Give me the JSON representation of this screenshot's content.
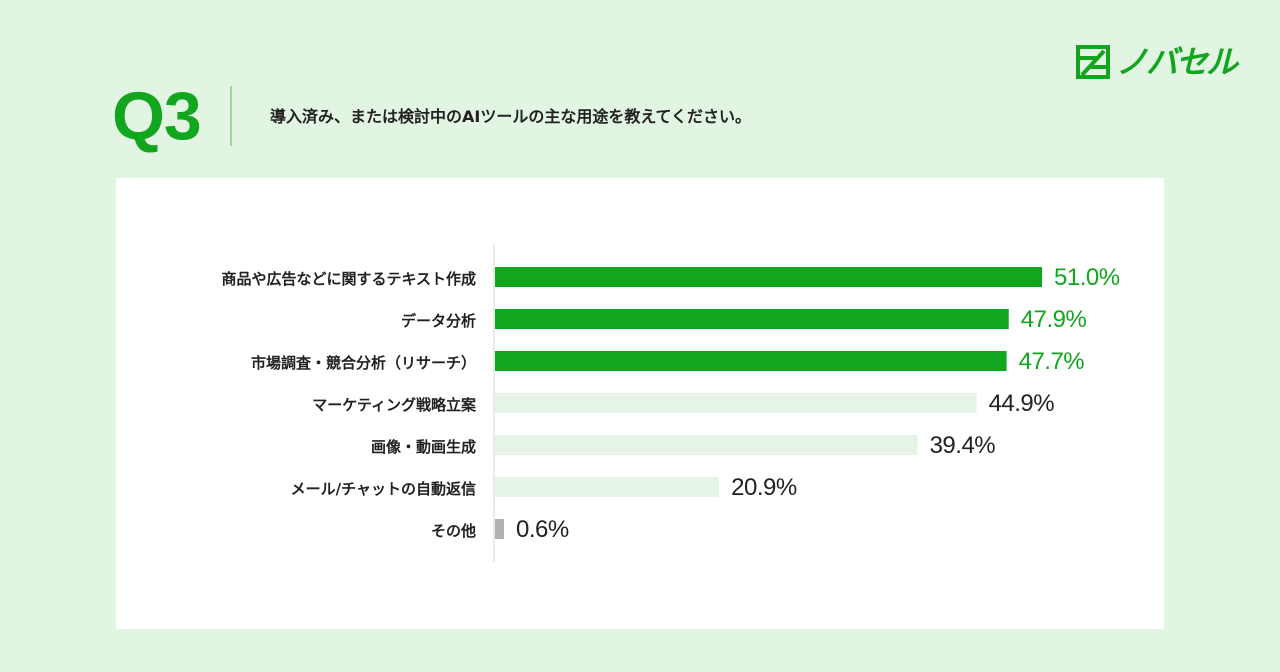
{
  "header": {
    "question_number": "Q3",
    "question_text": "導入済み、または検討中のAIツールの主な用途を教えてください。"
  },
  "brand": {
    "name": "ノバセル",
    "accent_color": "#12a51e"
  },
  "colors": {
    "highlight_bar": "#12a51e",
    "normal_bar": "#e6f4e7",
    "other_bar": "#b0b0b0",
    "axis": "#d6d6d6"
  },
  "chart_data": {
    "type": "bar",
    "orientation": "horizontal",
    "categories": [
      "商品や広告などに関するテキスト作成",
      "データ分析",
      "市場調査・競合分析（リサーチ）",
      "マーケティング戦略立案",
      "画像・動画生成",
      "メール/チャットの自動返信",
      "その他"
    ],
    "values": [
      51.0,
      47.9,
      47.7,
      44.9,
      39.4,
      20.9,
      0.6
    ],
    "value_labels": [
      "51.0%",
      "47.9%",
      "47.7%",
      "44.9%",
      "39.4%",
      "20.9%",
      "0.6%"
    ],
    "highlight": [
      true,
      true,
      true,
      false,
      false,
      false,
      false
    ],
    "unit": "%",
    "xlim": [
      0,
      51
    ]
  }
}
